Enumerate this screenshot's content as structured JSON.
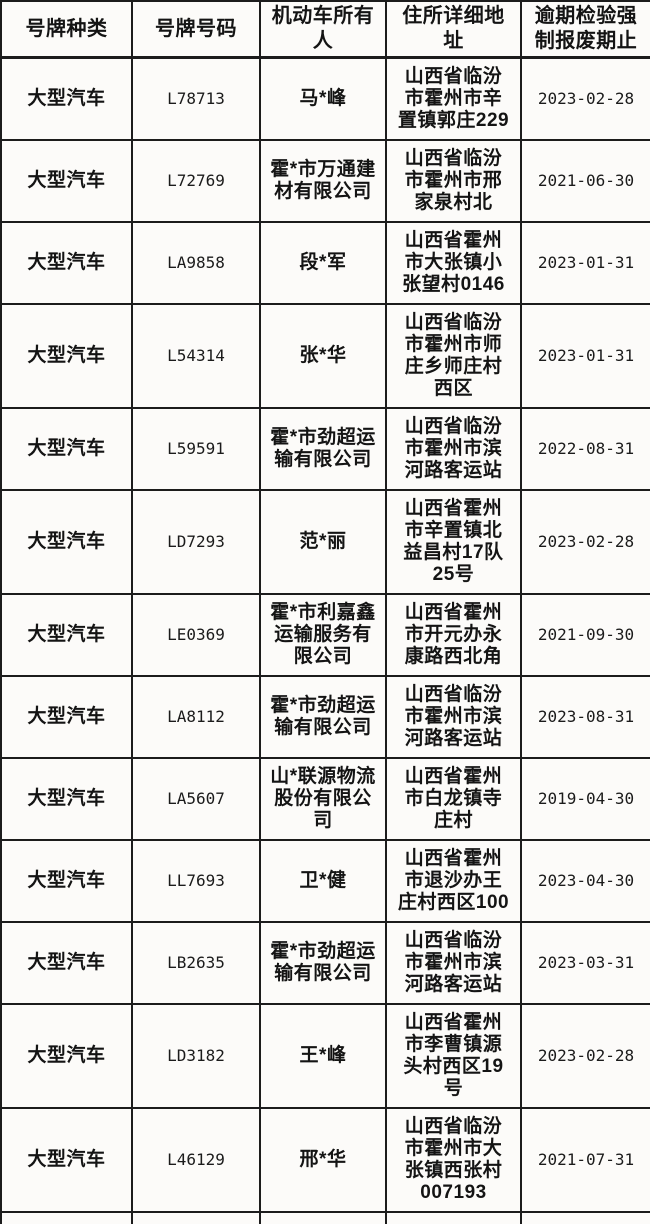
{
  "table": {
    "columns": [
      {
        "label": "号牌种类"
      },
      {
        "label": "号牌号码"
      },
      {
        "label": "机动车所有人"
      },
      {
        "label": "住所详细地址"
      },
      {
        "label": "逾期检验强制报废期止"
      }
    ],
    "rows": [
      {
        "plate_type": "大型汽车",
        "plate_number": "L78713",
        "owner": "马*峰",
        "address": "山西省临汾市霍州市辛置镇郭庄229",
        "deadline": "2023-02-28"
      },
      {
        "plate_type": "大型汽车",
        "plate_number": "L72769",
        "owner": "霍*市万通建材有限公司",
        "address": "山西省临汾市霍州市邢家泉村北",
        "deadline": "2021-06-30"
      },
      {
        "plate_type": "大型汽车",
        "plate_number": "LA9858",
        "owner": "段*军",
        "address": "山西省霍州市大张镇小张望村0146",
        "deadline": "2023-01-31"
      },
      {
        "plate_type": "大型汽车",
        "plate_number": "L54314",
        "owner": "张*华",
        "address": "山西省临汾市霍州市师庄乡师庄村西区",
        "deadline": "2023-01-31"
      },
      {
        "plate_type": "大型汽车",
        "plate_number": "L59591",
        "owner": "霍*市劲超运输有限公司",
        "address": "山西省临汾市霍州市滨河路客运站",
        "deadline": "2022-08-31"
      },
      {
        "plate_type": "大型汽车",
        "plate_number": "LD7293",
        "owner": "范*丽",
        "address": "山西省霍州市辛置镇北益昌村17队25号",
        "deadline": "2023-02-28"
      },
      {
        "plate_type": "大型汽车",
        "plate_number": "LE0369",
        "owner": "霍*市利嘉鑫运输服务有限公司",
        "address": "山西省霍州市开元办永康路西北角",
        "deadline": "2021-09-30"
      },
      {
        "plate_type": "大型汽车",
        "plate_number": "LA8112",
        "owner": "霍*市劲超运输有限公司",
        "address": "山西省临汾市霍州市滨河路客运站",
        "deadline": "2023-08-31"
      },
      {
        "plate_type": "大型汽车",
        "plate_number": "LA5607",
        "owner": "山*联源物流股份有限公司",
        "address": "山西省霍州市白龙镇寺庄村",
        "deadline": "2019-04-30"
      },
      {
        "plate_type": "大型汽车",
        "plate_number": "LL7693",
        "owner": "卫*健",
        "address": "山西省霍州市退沙办王庄村西区100",
        "deadline": "2023-04-30"
      },
      {
        "plate_type": "大型汽车",
        "plate_number": "LB2635",
        "owner": "霍*市劲超运输有限公司",
        "address": "山西省临汾市霍州市滨河路客运站",
        "deadline": "2023-03-31"
      },
      {
        "plate_type": "大型汽车",
        "plate_number": "LD3182",
        "owner": "王*峰",
        "address": "山西省霍州市李曹镇源头村西区19号",
        "deadline": "2023-02-28"
      },
      {
        "plate_type": "大型汽车",
        "plate_number": "L46129",
        "owner": "邢*华",
        "address": "山西省临汾市霍州市大张镇西张村007193",
        "deadline": "2021-07-31"
      }
    ]
  },
  "colors": {
    "border": "#1c1c1c",
    "text": "#141414",
    "background": "#fcfbf9"
  }
}
